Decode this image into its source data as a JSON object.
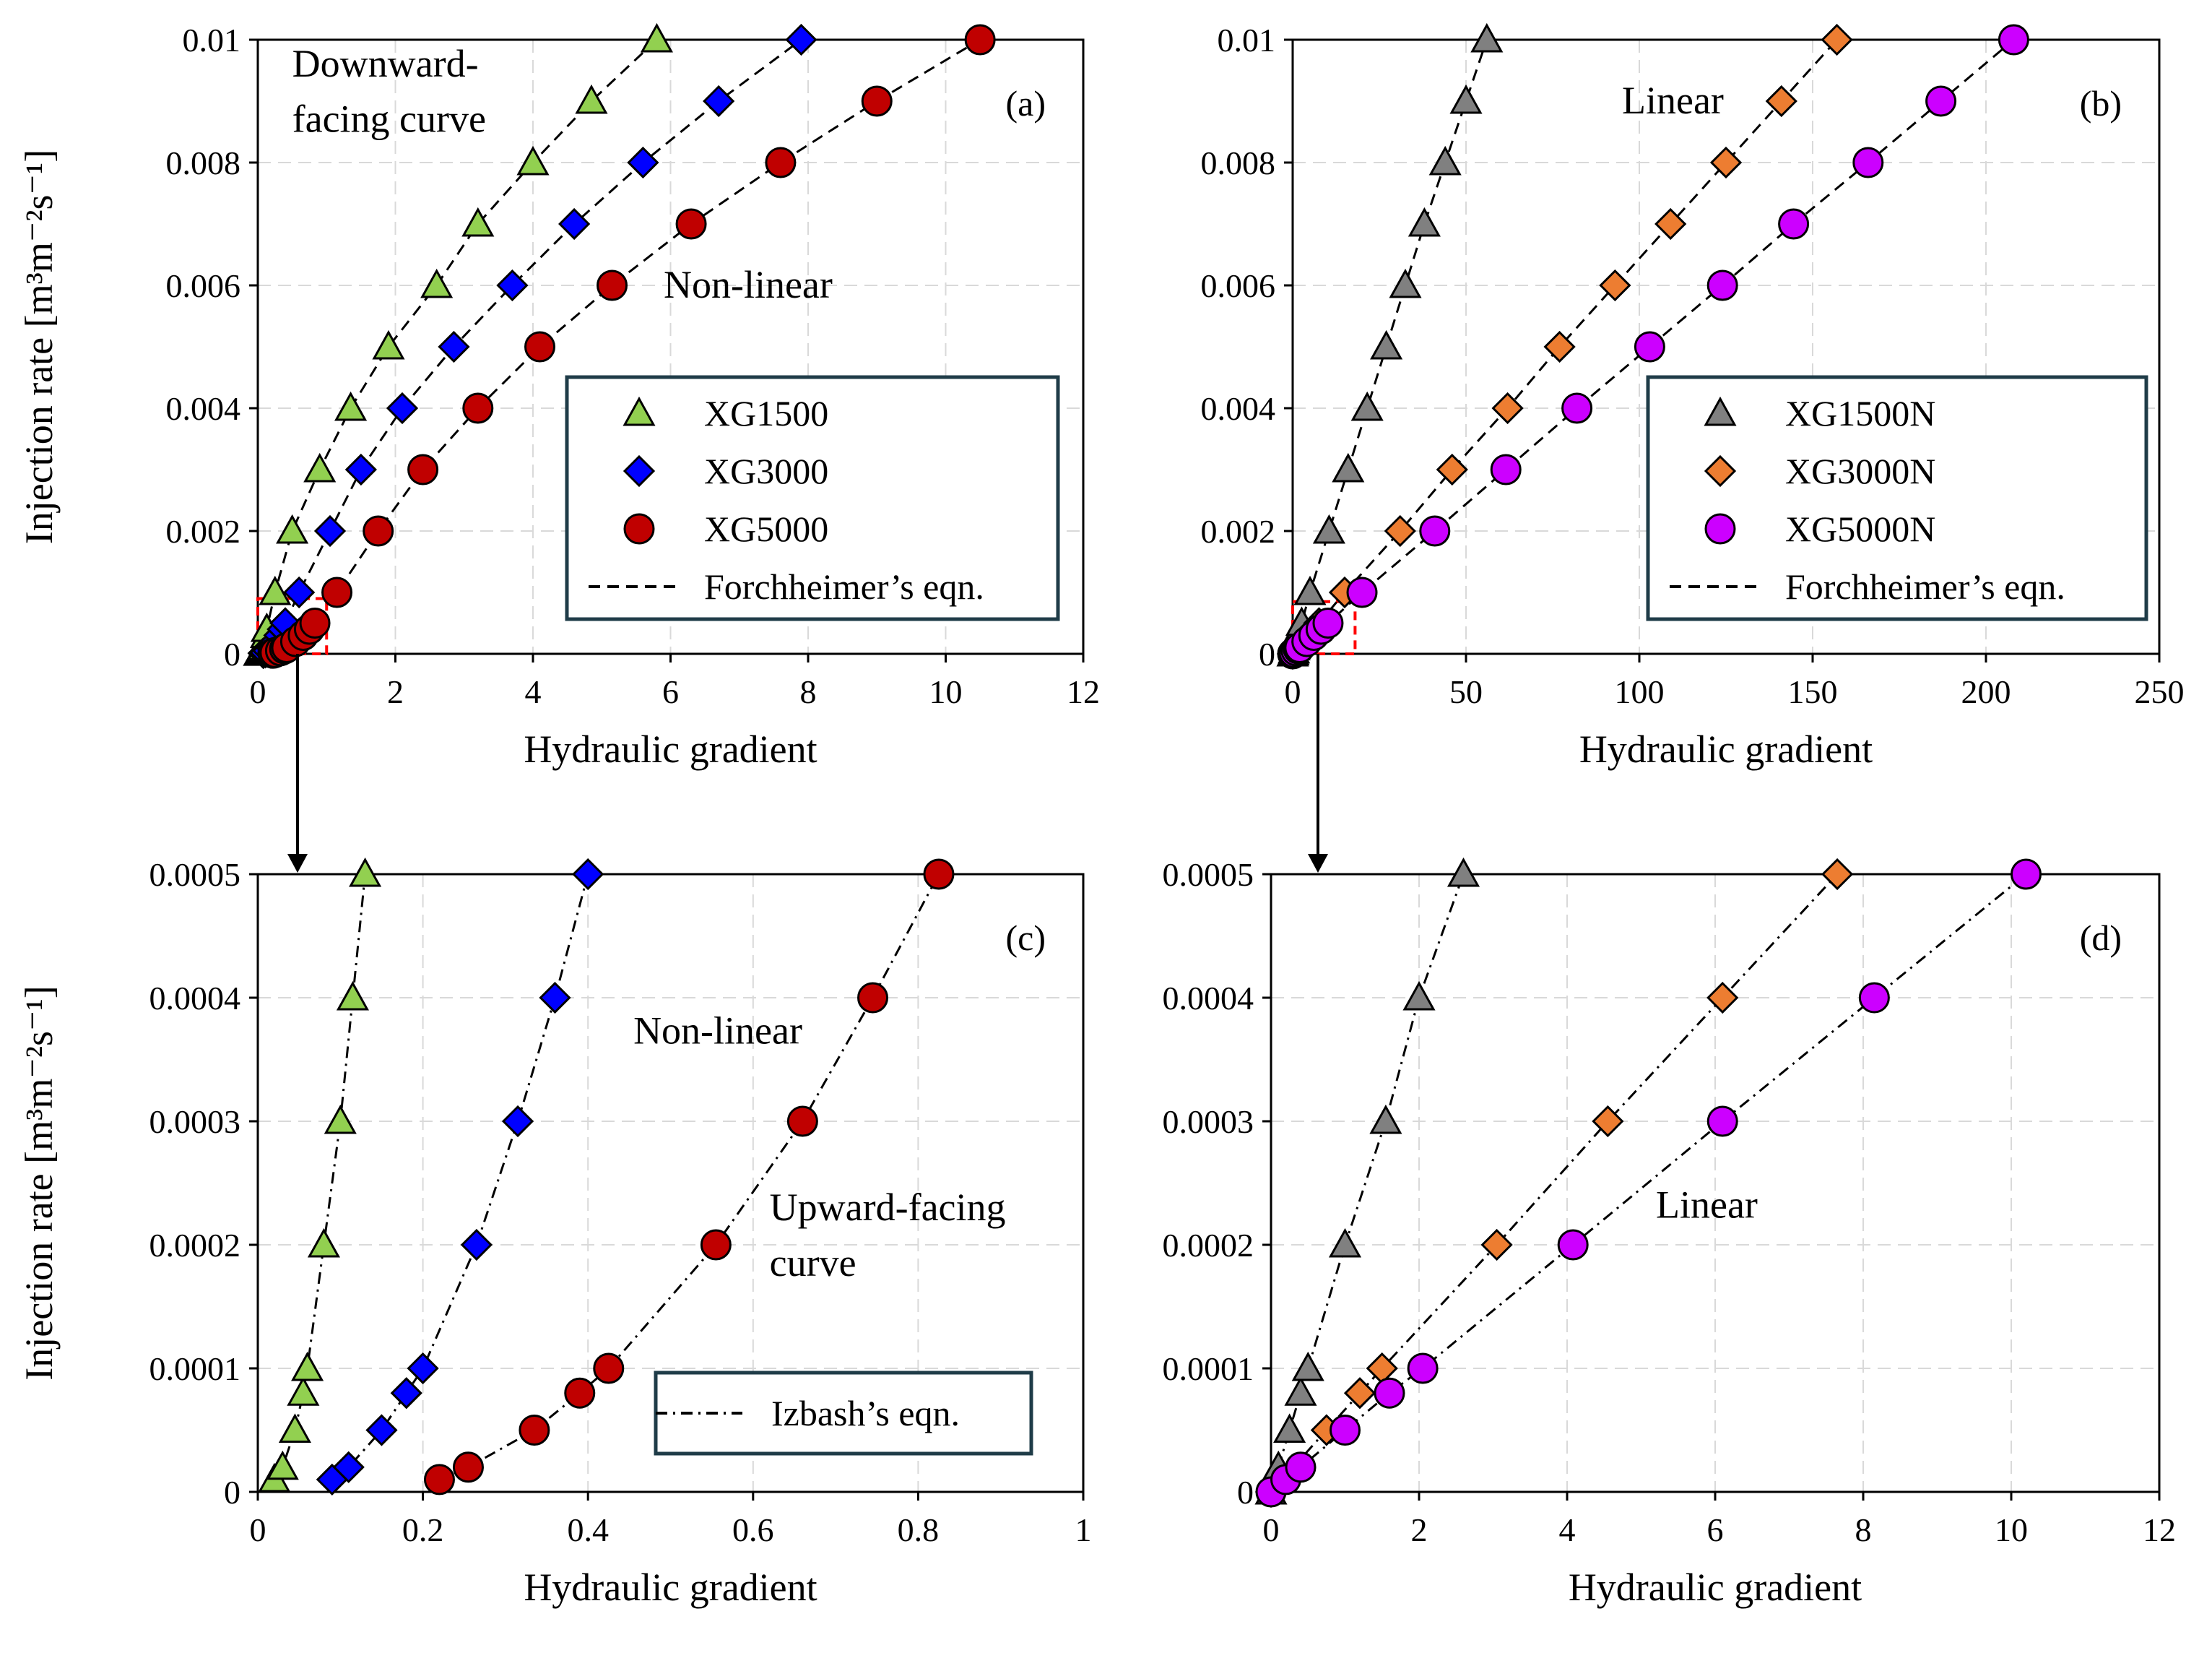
{
  "chart_data": [
    {
      "id": "a",
      "type": "scatter",
      "panel_label": "(a)",
      "xlabel": "Hydraulic gradient",
      "ylabel": "Injection rate [m³m⁻²s⁻¹]",
      "xlim": [
        0,
        12
      ],
      "ylim": [
        0,
        0.01
      ],
      "xticks": [
        0,
        2,
        4,
        6,
        8,
        10,
        12
      ],
      "xtick_labels": [
        "0",
        "2",
        "4",
        "6",
        "8",
        "10",
        "12"
      ],
      "yticks": [
        0,
        0.002,
        0.004,
        0.006,
        0.008,
        0.01
      ],
      "ytick_labels": [
        "0",
        "0.002",
        "0.004",
        "0.006",
        "0.008",
        "0.01"
      ],
      "grid": true,
      "fit_line_style": "dashed",
      "annotations": [
        {
          "text": "Downward-",
          "x": 0.5,
          "y": 0.0094,
          "anchor": "start"
        },
        {
          "text": "facing curve",
          "x": 0.5,
          "y": 0.0085,
          "anchor": "start"
        },
        {
          "text": "Non-linear",
          "x": 5.9,
          "y": 0.0058,
          "anchor": "start"
        }
      ],
      "zoom_box": {
        "x0": 0,
        "x1": 1,
        "y0": 0,
        "y1": 0.0009
      },
      "series": [
        {
          "name": "XG1500",
          "marker": "triangle",
          "color": "#92d050",
          "x": [
            0.02,
            0.03,
            0.05,
            0.06,
            0.08,
            0.1,
            0.12,
            0.13,
            0.25,
            0.5,
            0.9,
            1.35,
            1.9,
            2.6,
            3.2,
            4.0,
            4.85,
            5.8
          ],
          "y": [
            1e-05,
            2e-05,
            5e-05,
            8e-05,
            0.0001,
            0.0002,
            0.0003,
            0.0004,
            0.001,
            0.002,
            0.003,
            0.004,
            0.005,
            0.006,
            0.007,
            0.008,
            0.009,
            0.01
          ]
        },
        {
          "name": "XG3000",
          "marker": "diamond",
          "color": "#0000ff",
          "x": [
            0.08,
            0.11,
            0.15,
            0.2,
            0.26,
            0.31,
            0.36,
            0.4,
            0.6,
            1.05,
            1.5,
            2.1,
            2.85,
            3.7,
            4.6,
            5.6,
            6.7,
            7.9
          ],
          "y": [
            1e-05,
            2e-05,
            5e-05,
            0.0001,
            0.0002,
            0.0003,
            0.0004,
            0.0005,
            0.001,
            0.002,
            0.003,
            0.004,
            0.005,
            0.006,
            0.007,
            0.008,
            0.009,
            0.01
          ]
        },
        {
          "name": "XG5000",
          "marker": "circle",
          "color": "#c00000",
          "x": [
            0.22,
            0.25,
            0.33,
            0.39,
            0.42,
            0.55,
            0.66,
            0.75,
            0.83,
            1.15,
            1.75,
            2.4,
            3.2,
            4.1,
            5.15,
            6.3,
            7.6,
            9.0,
            10.5
          ],
          "y": [
            1e-05,
            2e-05,
            5e-05,
            8e-05,
            0.0001,
            0.0002,
            0.0003,
            0.0004,
            0.0005,
            0.001,
            0.002,
            0.003,
            0.004,
            0.005,
            0.006,
            0.007,
            0.008,
            0.009,
            0.01
          ]
        }
      ],
      "legend": {
        "placement": "right-middle",
        "entries": [
          {
            "label": "XG1500",
            "marker": "triangle",
            "color": "#92d050"
          },
          {
            "label": "XG3000",
            "marker": "diamond",
            "color": "#0000ff"
          },
          {
            "label": "XG5000",
            "marker": "circle",
            "color": "#c00000"
          },
          {
            "label": "Forchheimer’s eqn.",
            "line": "dashed"
          }
        ]
      }
    },
    {
      "id": "b",
      "type": "scatter",
      "panel_label": "(b)",
      "xlabel": "Hydraulic gradient",
      "ylabel": "",
      "xlim": [
        0,
        250
      ],
      "ylim": [
        0,
        0.01
      ],
      "xticks": [
        0,
        50,
        100,
        150,
        200,
        250
      ],
      "xtick_labels": [
        "0",
        "50",
        "100",
        "150",
        "200",
        "250"
      ],
      "yticks": [
        0,
        0.002,
        0.004,
        0.006,
        0.008,
        0.01
      ],
      "ytick_labels": [
        "0",
        "0.002",
        "0.004",
        "0.006",
        "0.008",
        "0.01"
      ],
      "grid": true,
      "fit_line_style": "dashed",
      "annotations": [
        {
          "text": "Linear",
          "x": 95,
          "y": 0.0088,
          "anchor": "start"
        }
      ],
      "zoom_box": {
        "x0": 0,
        "x1": 18,
        "y0": 0,
        "y1": 0.00085
      },
      "series": [
        {
          "name": "XG1500N",
          "marker": "triangle",
          "color": "#808080",
          "x": [
            0.0,
            0.2,
            0.35,
            0.5,
            1.0,
            1.5,
            2.0,
            2.6,
            5.0,
            10.5,
            16,
            21.5,
            27,
            32.5,
            38,
            44,
            50,
            56
          ],
          "y": [
            0.0,
            2e-05,
            5e-05,
            0.0001,
            0.0002,
            0.0003,
            0.0004,
            0.0005,
            0.001,
            0.002,
            0.003,
            0.004,
            0.005,
            0.006,
            0.007,
            0.008,
            0.009,
            0.01
          ]
        },
        {
          "name": "XG3000N",
          "marker": "diamond",
          "color": "#ed7d31",
          "x": [
            0.0,
            0.75,
            1.2,
            1.5,
            3.0,
            4.6,
            6.1,
            7.6,
            15,
            31,
            46,
            62,
            77,
            93,
            109,
            125,
            141,
            157
          ],
          "y": [
            0.0,
            5e-05,
            8e-05,
            0.0001,
            0.0002,
            0.0003,
            0.0004,
            0.0005,
            0.001,
            0.002,
            0.003,
            0.004,
            0.005,
            0.006,
            0.007,
            0.008,
            0.009,
            0.01
          ]
        },
        {
          "name": "XG5000N",
          "marker": "circle",
          "color": "#cc00ff",
          "x": [
            0.0,
            0.2,
            0.4,
            1.0,
            1.6,
            2.05,
            4.1,
            6.1,
            8.2,
            10.2,
            20,
            41,
            61.5,
            82,
            103,
            124,
            144.5,
            166,
            187,
            208
          ],
          "y": [
            0.0,
            1e-05,
            2e-05,
            5e-05,
            8e-05,
            0.0001,
            0.0002,
            0.0003,
            0.0004,
            0.0005,
            0.001,
            0.002,
            0.003,
            0.004,
            0.005,
            0.006,
            0.007,
            0.008,
            0.009,
            0.01
          ]
        }
      ],
      "legend": {
        "placement": "right-middle",
        "entries": [
          {
            "label": "XG1500N",
            "marker": "triangle",
            "color": "#808080"
          },
          {
            "label": "XG3000N",
            "marker": "diamond",
            "color": "#ed7d31"
          },
          {
            "label": "XG5000N",
            "marker": "circle",
            "color": "#cc00ff"
          },
          {
            "label": "Forchheimer’s eqn.",
            "line": "dashed"
          }
        ]
      }
    },
    {
      "id": "c",
      "type": "scatter",
      "panel_label": "(c)",
      "xlabel": "Hydraulic gradient",
      "ylabel": "Injection rate [m³m⁻²s⁻¹]",
      "xlim": [
        0,
        1
      ],
      "ylim": [
        0,
        0.0005
      ],
      "xticks": [
        0,
        0.2,
        0.4,
        0.6,
        0.8,
        1
      ],
      "xtick_labels": [
        "0",
        "0.2",
        "0.4",
        "0.6",
        "0.8",
        "1"
      ],
      "yticks": [
        0,
        0.0001,
        0.0002,
        0.0003,
        0.0004,
        0.0005
      ],
      "ytick_labels": [
        "0",
        "0.0001",
        "0.0002",
        "0.0003",
        "0.0004",
        "0.0005"
      ],
      "grid": true,
      "fit_line_style": "dashdot",
      "annotations": [
        {
          "text": "Non-linear",
          "x": 0.455,
          "y": 0.000363,
          "anchor": "start"
        },
        {
          "text": "Upward-facing",
          "x": 0.62,
          "y": 0.00022,
          "anchor": "start"
        },
        {
          "text": "curve",
          "x": 0.62,
          "y": 0.000175,
          "anchor": "start"
        }
      ],
      "series": [
        {
          "name": "XG1500",
          "marker": "triangle",
          "color": "#92d050",
          "x": [
            0.02,
            0.03,
            0.045,
            0.055,
            0.06,
            0.08,
            0.1,
            0.115,
            0.13
          ],
          "y": [
            1e-05,
            2e-05,
            5e-05,
            8e-05,
            0.0001,
            0.0002,
            0.0003,
            0.0004,
            0.0005
          ]
        },
        {
          "name": "XG3000",
          "marker": "diamond",
          "color": "#0000ff",
          "x": [
            0.09,
            0.11,
            0.15,
            0.18,
            0.2,
            0.265,
            0.315,
            0.36,
            0.4
          ],
          "y": [
            1e-05,
            2e-05,
            5e-05,
            8e-05,
            0.0001,
            0.0002,
            0.0003,
            0.0004,
            0.0005
          ]
        },
        {
          "name": "XG5000",
          "marker": "circle",
          "color": "#c00000",
          "x": [
            0.22,
            0.255,
            0.335,
            0.39,
            0.425,
            0.555,
            0.66,
            0.745,
            0.825
          ],
          "y": [
            1e-05,
            2e-05,
            5e-05,
            8e-05,
            0.0001,
            0.0002,
            0.0003,
            0.0004,
            0.0005
          ]
        }
      ],
      "legend": {
        "placement": "bottom-right",
        "entries": [
          {
            "label": "Izbash’s eqn.",
            "line": "dashdot"
          }
        ]
      }
    },
    {
      "id": "d",
      "type": "scatter",
      "panel_label": "(d)",
      "xlabel": "Hydraulic gradient",
      "ylabel": "",
      "xlim": [
        0,
        12
      ],
      "ylim": [
        0,
        0.0005
      ],
      "xticks": [
        0,
        2,
        4,
        6,
        8,
        10,
        12
      ],
      "xtick_labels": [
        "0",
        "2",
        "4",
        "6",
        "8",
        "10",
        "12"
      ],
      "yticks": [
        0,
        0.0001,
        0.0002,
        0.0003,
        0.0004,
        0.0005
      ],
      "ytick_labels": [
        "0",
        "0.0001",
        "0.0002",
        "0.0003",
        "0.0004",
        "0.0005"
      ],
      "grid": true,
      "fit_line_style": "dashdot",
      "annotations": [
        {
          "text": "Linear",
          "x": 5.2,
          "y": 0.000222,
          "anchor": "start"
        }
      ],
      "series": [
        {
          "name": "XG1500N",
          "marker": "triangle",
          "color": "#808080",
          "x": [
            0.0,
            0.1,
            0.25,
            0.4,
            0.5,
            1.0,
            1.55,
            2.0,
            2.6
          ],
          "y": [
            0.0,
            2e-05,
            5e-05,
            8e-05,
            0.0001,
            0.0002,
            0.0003,
            0.0004,
            0.0005
          ]
        },
        {
          "name": "XG3000N",
          "marker": "diamond",
          "color": "#ed7d31",
          "x": [
            0.0,
            0.75,
            1.2,
            1.5,
            3.05,
            4.55,
            6.1,
            7.65
          ],
          "y": [
            0.0,
            5e-05,
            8e-05,
            0.0001,
            0.0002,
            0.0003,
            0.0004,
            0.0005
          ]
        },
        {
          "name": "XG5000N",
          "marker": "circle",
          "color": "#cc00ff",
          "x": [
            0.0,
            0.2,
            0.4,
            1.0,
            1.6,
            2.05,
            4.08,
            6.1,
            8.15,
            10.2
          ],
          "y": [
            0.0,
            1e-05,
            2e-05,
            5e-05,
            8e-05,
            0.0001,
            0.0002,
            0.0003,
            0.0004,
            0.0005
          ]
        }
      ],
      "legend": null
    }
  ]
}
